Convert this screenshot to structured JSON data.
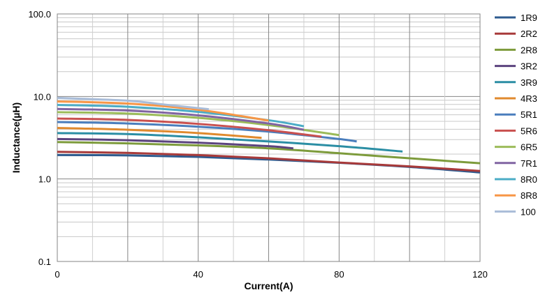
{
  "chart_data": {
    "type": "line",
    "xlabel": "Current(A)",
    "ylabel": "Inductance(µH)",
    "xlim": [
      0,
      120
    ],
    "ylim": [
      0.1,
      100
    ],
    "y_scale": "log",
    "grid": true,
    "legend_position": "right",
    "x_ticks": [
      "0",
      "40",
      "80",
      "120"
    ],
    "x_tick_values": [
      0,
      40,
      80,
      120
    ],
    "y_ticks": [
      "0.1",
      "1.0",
      "10.0",
      "100.0"
    ],
    "y_tick_values": [
      0.1,
      1,
      10,
      100
    ],
    "series": [
      {
        "name": "1R9",
        "color": "#2e5b8f",
        "x": [
          0,
          20,
          40,
          60,
          80,
          100,
          120
        ],
        "y": [
          1.95,
          1.93,
          1.85,
          1.72,
          1.57,
          1.4,
          1.2
        ]
      },
      {
        "name": "2R2",
        "color": "#a83a3a",
        "x": [
          0,
          20,
          40,
          60,
          80,
          100,
          120
        ],
        "y": [
          2.13,
          2.07,
          1.95,
          1.78,
          1.58,
          1.42,
          1.25
        ]
      },
      {
        "name": "2R8",
        "color": "#7d9b3b",
        "x": [
          0,
          20,
          40,
          60,
          80,
          100,
          120
        ],
        "y": [
          2.8,
          2.7,
          2.55,
          2.35,
          2.05,
          1.78,
          1.55
        ]
      },
      {
        "name": "3R2",
        "color": "#5b437e",
        "x": [
          0,
          20,
          40,
          60,
          67
        ],
        "y": [
          3.05,
          2.95,
          2.75,
          2.5,
          2.35
        ]
      },
      {
        "name": "3R9",
        "color": "#2b8ea4",
        "x": [
          0,
          20,
          40,
          60,
          80,
          98
        ],
        "y": [
          3.6,
          3.5,
          3.2,
          2.85,
          2.5,
          2.15
        ]
      },
      {
        "name": "4R3",
        "color": "#e08a2e",
        "x": [
          0,
          20,
          40,
          58
        ],
        "y": [
          4.15,
          3.95,
          3.6,
          3.15
        ]
      },
      {
        "name": "5R1",
        "color": "#4a7ebd",
        "x": [
          0,
          20,
          40,
          60,
          80,
          85
        ],
        "y": [
          4.9,
          4.7,
          4.3,
          3.75,
          3.05,
          2.85
        ]
      },
      {
        "name": "5R6",
        "color": "#c9504f",
        "x": [
          0,
          20,
          40,
          60,
          75
        ],
        "y": [
          5.4,
          5.2,
          4.65,
          3.9,
          3.25
        ]
      },
      {
        "name": "6R5",
        "color": "#9bbb59",
        "x": [
          0,
          20,
          40,
          60,
          80
        ],
        "y": [
          6.45,
          6.2,
          5.5,
          4.5,
          3.4
        ]
      },
      {
        "name": "7R1",
        "color": "#8064a2",
        "x": [
          0,
          20,
          40,
          60,
          70
        ],
        "y": [
          7.05,
          6.75,
          5.9,
          4.7,
          3.95
        ]
      },
      {
        "name": "8R0",
        "color": "#4bacc6",
        "x": [
          0,
          20,
          40,
          60,
          70
        ],
        "y": [
          7.9,
          7.5,
          6.5,
          5.15,
          4.35
        ]
      },
      {
        "name": "8R8",
        "color": "#f79646",
        "x": [
          0,
          20,
          40,
          60
        ],
        "y": [
          8.7,
          8.2,
          6.9,
          5.1
        ]
      },
      {
        "name": "100",
        "color": "#a9bcd8",
        "x": [
          0,
          20,
          30,
          43
        ],
        "y": [
          9.6,
          8.9,
          8.0,
          7.0
        ]
      }
    ]
  }
}
